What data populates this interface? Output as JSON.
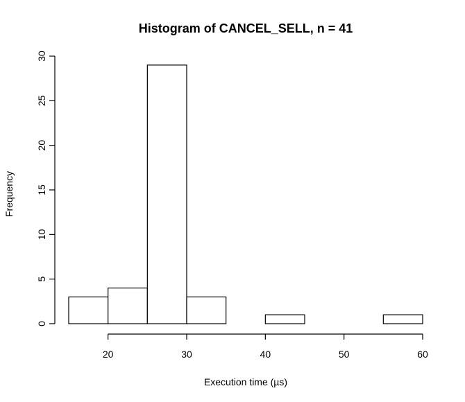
{
  "chart_data": {
    "type": "bar",
    "title": "Histogram of CANCEL_SELL, n = 41",
    "xlabel": "Execution time (µs)",
    "ylabel": "Frequency",
    "bins": [
      {
        "start": 15,
        "end": 20,
        "count": 3
      },
      {
        "start": 20,
        "end": 25,
        "count": 4
      },
      {
        "start": 25,
        "end": 30,
        "count": 29
      },
      {
        "start": 30,
        "end": 35,
        "count": 3
      },
      {
        "start": 35,
        "end": 40,
        "count": 0
      },
      {
        "start": 40,
        "end": 45,
        "count": 1
      },
      {
        "start": 45,
        "end": 50,
        "count": 0
      },
      {
        "start": 50,
        "end": 55,
        "count": 0
      },
      {
        "start": 55,
        "end": 60,
        "count": 1
      }
    ],
    "xlim": [
      15,
      60
    ],
    "xaxis_range": [
      20,
      60
    ],
    "ylim": [
      0,
      30
    ],
    "xticks": [
      20,
      30,
      40,
      50,
      60
    ],
    "yticks": [
      0,
      5,
      10,
      15,
      20,
      25,
      30
    ],
    "grid": false,
    "legend": "none"
  }
}
